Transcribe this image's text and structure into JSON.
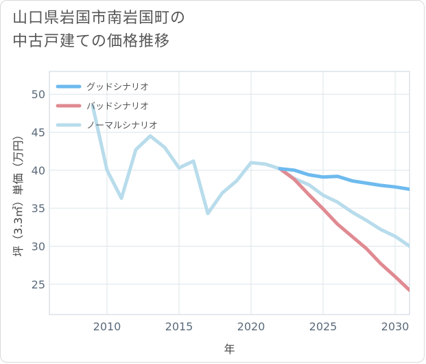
{
  "title_line1": "山口県岩国市南岩国町の",
  "title_line2": "中古戸建ての価格推移",
  "chart_data": {
    "type": "line",
    "xlabel": "年",
    "ylabel": "坪（3.3㎡）単価（万円）",
    "xlim": [
      2006,
      2031
    ],
    "ylim": [
      21,
      53
    ],
    "x_ticks": [
      2010,
      2015,
      2020,
      2025,
      2030
    ],
    "y_ticks": [
      25,
      30,
      35,
      40,
      45,
      50
    ],
    "grid": true,
    "legend_position": "top-left",
    "series": [
      {
        "name": "グッドシナリオ",
        "color": "#6dbaee",
        "x": [
          2022,
          2023,
          2024,
          2025,
          2026,
          2027,
          2028,
          2029,
          2030,
          2031
        ],
        "y": [
          40.2,
          40.0,
          39.4,
          39.1,
          39.2,
          38.6,
          38.3,
          38.0,
          37.8,
          37.5
        ]
      },
      {
        "name": "バッドシナリオ",
        "color": "#e08a92",
        "x": [
          2022,
          2023,
          2024,
          2025,
          2026,
          2027,
          2028,
          2029,
          2030,
          2031
        ],
        "y": [
          40.2,
          38.8,
          36.8,
          34.9,
          32.9,
          31.3,
          29.7,
          27.7,
          26.0,
          24.2
        ]
      },
      {
        "name": "ノーマルシナリオ",
        "color": "#b8dceb",
        "x": [
          2009,
          2010,
          2011,
          2012,
          2013,
          2014,
          2015,
          2016,
          2017,
          2018,
          2019,
          2020,
          2021,
          2022,
          2023,
          2024,
          2025,
          2026,
          2027,
          2028,
          2029,
          2030,
          2031
        ],
        "y": [
          48.5,
          40.0,
          36.3,
          42.7,
          44.5,
          43.0,
          40.3,
          41.2,
          34.3,
          37.0,
          38.6,
          41.0,
          40.8,
          40.2,
          38.9,
          38.1,
          36.7,
          35.8,
          34.5,
          33.4,
          32.2,
          31.3,
          30.0
        ]
      }
    ]
  }
}
